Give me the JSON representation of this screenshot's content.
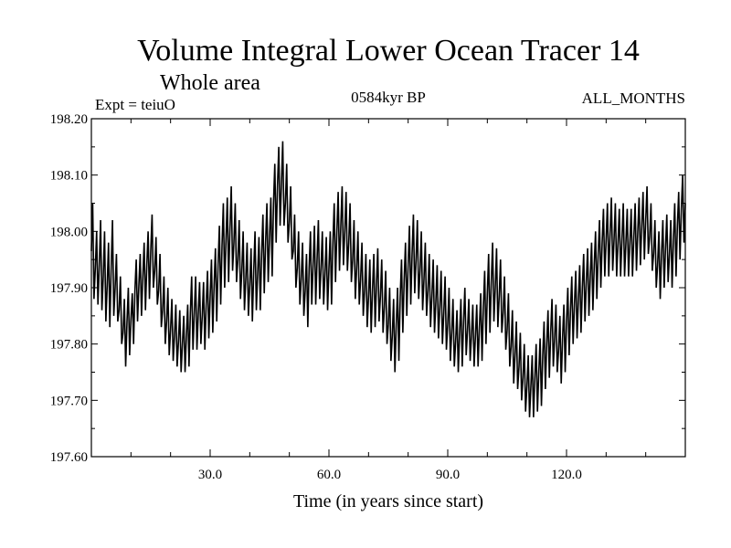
{
  "chart_data": {
    "type": "line",
    "title": "Volume Integral Lower Ocean Tracer 14",
    "subtitle": "Whole area",
    "expt_label": "Expt = teiuO",
    "period_label": "0584kyr BP",
    "months_label": "ALL_MONTHS",
    "xlabel": "Time (in years since start)",
    "ylabel": "",
    "xlim": [
      0,
      150
    ],
    "ylim": [
      197.6,
      198.2
    ],
    "x_ticks": [
      30,
      60,
      90,
      120
    ],
    "x_tick_labels": [
      "30.0",
      "60.0",
      "90.0",
      "120.0"
    ],
    "y_ticks": [
      197.6,
      197.7,
      197.8,
      197.9,
      198.0,
      198.1,
      198.2
    ],
    "y_tick_labels": [
      "197.60",
      "197.70",
      "197.80",
      "197.90",
      "198.00",
      "198.10",
      "198.20"
    ],
    "series": [
      {
        "name": "Volume Integral Lower Ocean Tracer 14",
        "color": "#000000",
        "x": [
          0,
          1,
          2,
          3,
          4,
          5,
          6,
          7,
          8,
          9,
          10,
          11,
          12,
          13,
          14,
          15,
          16,
          17,
          18,
          19,
          20,
          21,
          22,
          23,
          24,
          25,
          26,
          27,
          28,
          29,
          30,
          31,
          32,
          33,
          34,
          35,
          36,
          37,
          38,
          39,
          40,
          41,
          42,
          43,
          44,
          45,
          46,
          47,
          48,
          49,
          50,
          51,
          52,
          53,
          54,
          55,
          56,
          57,
          58,
          59,
          60,
          61,
          62,
          63,
          64,
          65,
          66,
          67,
          68,
          69,
          70,
          71,
          72,
          73,
          74,
          75,
          76,
          77,
          78,
          79,
          80,
          81,
          82,
          83,
          84,
          85,
          86,
          87,
          88,
          89,
          90,
          91,
          92,
          93,
          94,
          95,
          96,
          97,
          98,
          99,
          100,
          101,
          102,
          103,
          104,
          105,
          106,
          107,
          108,
          109,
          110,
          111,
          112,
          113,
          114,
          115,
          116,
          117,
          118,
          119,
          120,
          121,
          122,
          123,
          124,
          125,
          126,
          127,
          128,
          129,
          130,
          131,
          132,
          133,
          134,
          135,
          136,
          137,
          138,
          139,
          140,
          141,
          142,
          143,
          144,
          145,
          146,
          147,
          148,
          149,
          150
        ],
        "upper": [
          198.05,
          198.0,
          198.02,
          198.0,
          197.98,
          198.02,
          197.96,
          197.92,
          197.88,
          197.9,
          197.89,
          197.95,
          197.96,
          197.98,
          198.0,
          198.03,
          197.99,
          197.96,
          197.92,
          197.9,
          197.88,
          197.87,
          197.86,
          197.85,
          197.87,
          197.92,
          197.92,
          197.91,
          197.91,
          197.93,
          197.95,
          197.97,
          198.01,
          198.05,
          198.06,
          198.08,
          198.05,
          198.02,
          198.0,
          197.98,
          197.97,
          198.0,
          197.99,
          198.03,
          198.05,
          198.06,
          198.12,
          198.15,
          198.16,
          198.12,
          198.08,
          198.03,
          198.0,
          197.98,
          197.96,
          198.0,
          198.01,
          198.02,
          198.0,
          197.99,
          198.0,
          198.05,
          198.07,
          198.08,
          198.07,
          198.05,
          198.02,
          198.0,
          197.98,
          197.96,
          197.95,
          197.96,
          197.97,
          197.95,
          197.93,
          197.9,
          197.88,
          197.9,
          197.95,
          197.98,
          198.01,
          198.03,
          198.02,
          198.0,
          197.98,
          197.96,
          197.95,
          197.94,
          197.93,
          197.92,
          197.9,
          197.88,
          197.86,
          197.88,
          197.9,
          197.88,
          197.87,
          197.87,
          197.89,
          197.93,
          197.96,
          197.98,
          197.97,
          197.95,
          197.92,
          197.89,
          197.86,
          197.84,
          197.82,
          197.8,
          197.78,
          197.78,
          197.8,
          197.81,
          197.84,
          197.86,
          197.88,
          197.87,
          197.85,
          197.87,
          197.9,
          197.92,
          197.93,
          197.94,
          197.96,
          197.97,
          197.98,
          198.0,
          198.02,
          198.04,
          198.05,
          198.06,
          198.05,
          198.04,
          198.05,
          198.04,
          198.04,
          198.05,
          198.06,
          198.07,
          198.08,
          198.05,
          198.02,
          198.0,
          198.02,
          198.03,
          198.02,
          198.05,
          198.07,
          198.1,
          198.1
        ],
        "lower": [
          197.88,
          197.87,
          197.86,
          197.84,
          197.83,
          197.85,
          197.84,
          197.8,
          197.76,
          197.78,
          197.8,
          197.84,
          197.85,
          197.86,
          197.88,
          197.9,
          197.87,
          197.83,
          197.8,
          197.78,
          197.77,
          197.76,
          197.75,
          197.75,
          197.76,
          197.79,
          197.79,
          197.8,
          197.79,
          197.81,
          197.82,
          197.84,
          197.87,
          197.9,
          197.91,
          197.93,
          197.91,
          197.88,
          197.86,
          197.85,
          197.84,
          197.86,
          197.86,
          197.89,
          197.91,
          197.92,
          197.98,
          198.01,
          198.01,
          197.98,
          197.95,
          197.9,
          197.87,
          197.85,
          197.83,
          197.87,
          197.87,
          197.88,
          197.87,
          197.86,
          197.87,
          197.91,
          197.93,
          197.94,
          197.93,
          197.91,
          197.88,
          197.87,
          197.85,
          197.83,
          197.82,
          197.83,
          197.84,
          197.82,
          197.8,
          197.77,
          197.75,
          197.77,
          197.82,
          197.85,
          197.87,
          197.89,
          197.88,
          197.86,
          197.85,
          197.83,
          197.82,
          197.81,
          197.8,
          197.79,
          197.77,
          197.76,
          197.75,
          197.76,
          197.78,
          197.77,
          197.76,
          197.76,
          197.77,
          197.8,
          197.82,
          197.84,
          197.83,
          197.82,
          197.79,
          197.76,
          197.73,
          197.72,
          197.7,
          197.68,
          197.67,
          197.67,
          197.68,
          197.69,
          197.72,
          197.74,
          197.76,
          197.75,
          197.73,
          197.75,
          197.78,
          197.8,
          197.81,
          197.82,
          197.84,
          197.85,
          197.86,
          197.88,
          197.9,
          197.92,
          197.92,
          197.93,
          197.92,
          197.92,
          197.92,
          197.92,
          197.92,
          197.93,
          197.94,
          197.95,
          197.96,
          197.93,
          197.9,
          197.88,
          197.9,
          197.91,
          197.9,
          197.92,
          197.95,
          197.98,
          198.0
        ]
      }
    ]
  }
}
